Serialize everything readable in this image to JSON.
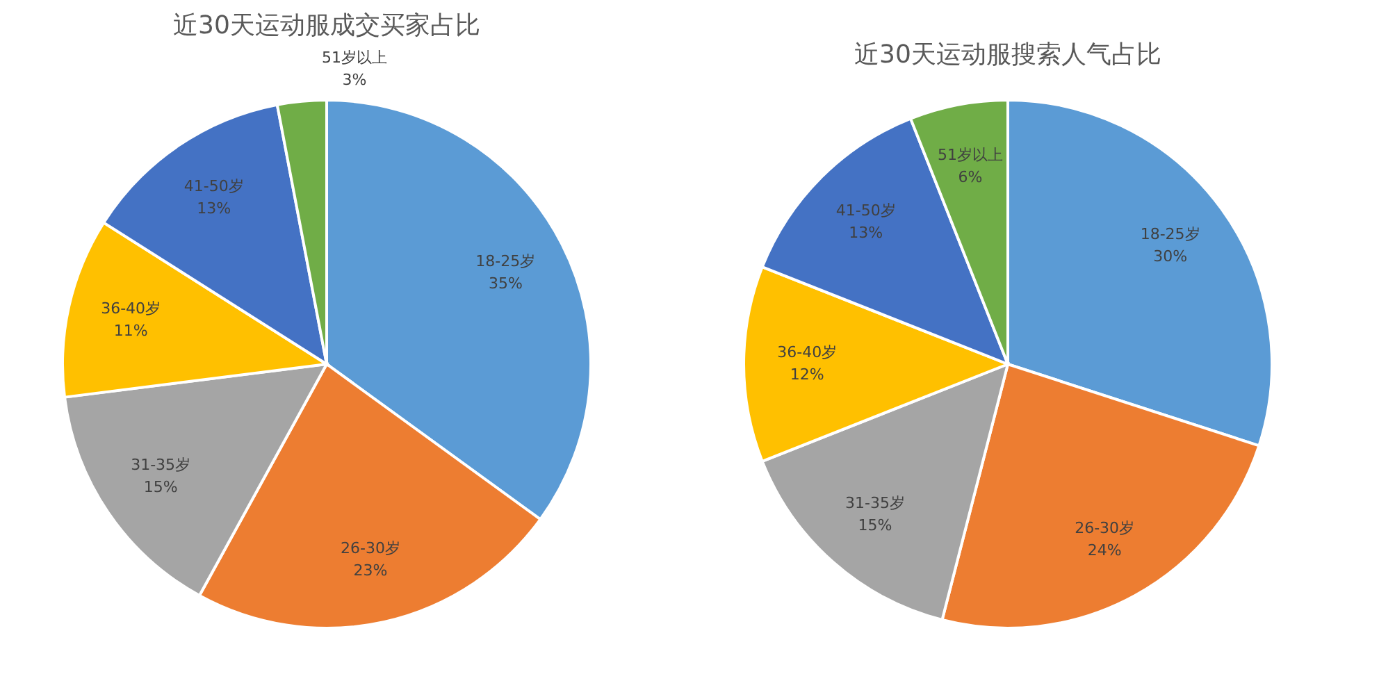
{
  "chart_data": [
    {
      "type": "pie",
      "title": "近30天运动服成交买家占比",
      "categories": [
        "18-25岁",
        "26-30岁",
        "31-35岁",
        "36-40岁",
        "41-50岁",
        "51岁以上"
      ],
      "values": [
        35,
        23,
        15,
        11,
        13,
        3
      ],
      "value_labels": [
        "35%",
        "23%",
        "15%",
        "11%",
        "13%",
        "3%"
      ],
      "colors": [
        "#5b9bd5",
        "#ed7d31",
        "#a5a5a5",
        "#ffc000",
        "#4472c4",
        "#70ad47"
      ],
      "legend": false
    },
    {
      "type": "pie",
      "title": "近30天运动服搜索人气占比",
      "categories": [
        "18-25岁",
        "26-30岁",
        "31-35岁",
        "36-40岁",
        "41-50岁",
        "51岁以上"
      ],
      "values": [
        30,
        24,
        15,
        12,
        13,
        6
      ],
      "value_labels": [
        "30%",
        "24%",
        "15%",
        "12%",
        "13%",
        "6%"
      ],
      "colors": [
        "#5b9bd5",
        "#ed7d31",
        "#a5a5a5",
        "#ffc000",
        "#4472c4",
        "#70ad47"
      ],
      "legend": false
    }
  ]
}
